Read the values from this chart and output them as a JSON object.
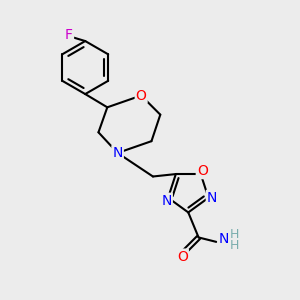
{
  "background_color": "#ececec",
  "bond_color": "#000000",
  "atom_colors": {
    "O": "#ff0000",
    "N": "#0000ff",
    "F": "#cc00cc",
    "C": "#000000",
    "H": "#7aadad"
  },
  "figsize": [
    3.0,
    3.0
  ],
  "dpi": 100
}
